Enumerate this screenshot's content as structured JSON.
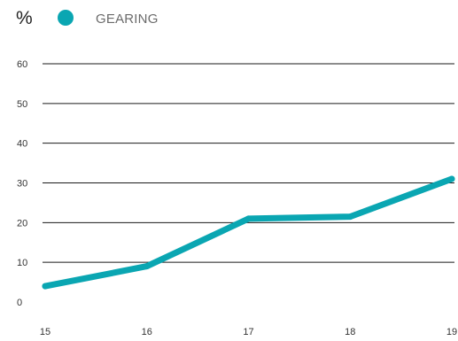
{
  "chart_data": {
    "type": "line",
    "unit_label": "%",
    "x": [
      "15",
      "16",
      "17",
      "18",
      "19"
    ],
    "series": [
      {
        "name": "GEARING",
        "color": "#0aa6b2",
        "values": [
          4,
          9,
          21,
          21.5,
          31
        ]
      }
    ],
    "y_ticks": [
      "0",
      "10",
      "20",
      "30",
      "40",
      "50",
      "60"
    ],
    "ylim": [
      0,
      60
    ],
    "grid": "horizontal",
    "legend_position": "top-left"
  }
}
